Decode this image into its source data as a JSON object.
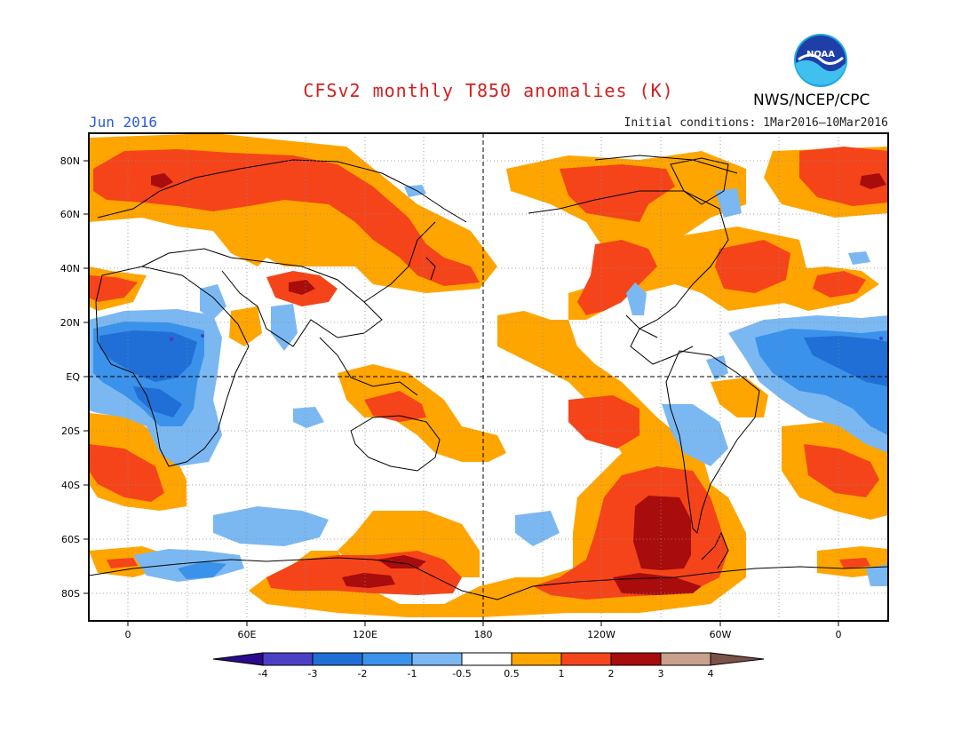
{
  "header": {
    "title": "CFSv2 monthly T850 anomalies (K)",
    "period": "Jun 2016",
    "initial_conditions": "Initial conditions: 1Mar2016—10Mar2016",
    "agency": "NWS/NCEP/CPC",
    "logo_text": "NOAA"
  },
  "map": {
    "lat_labels": [
      "80N",
      "60N",
      "40N",
      "20N",
      "EQ",
      "20S",
      "40S",
      "60S",
      "80S"
    ],
    "lon_labels": [
      "0",
      "60E",
      "120E",
      "180",
      "120W",
      "60W",
      "0"
    ]
  },
  "colorbar": {
    "tick_labels": [
      "-4",
      "-3",
      "-2",
      "-1",
      "-0.5",
      "0.5",
      "1",
      "2",
      "3",
      "4"
    ],
    "colors": [
      "#2a0a8c",
      "#4b3fc8",
      "#1f6fd6",
      "#3a92ea",
      "#7bb8f2",
      "#ffffff",
      "#ffa500",
      "#f5441a",
      "#a80c0c",
      "#c8a08c",
      "#7a5248"
    ]
  },
  "colors": {
    "neg_strong": "#1f6fd6",
    "neg_mid": "#3a92ea",
    "neg_weak": "#7bb8f2",
    "pos_weak": "#ffa500",
    "pos_mid": "#f5441a",
    "pos_strong": "#a80c0c",
    "title_red": "#d42020",
    "period_blue": "#2a5bd7"
  }
}
